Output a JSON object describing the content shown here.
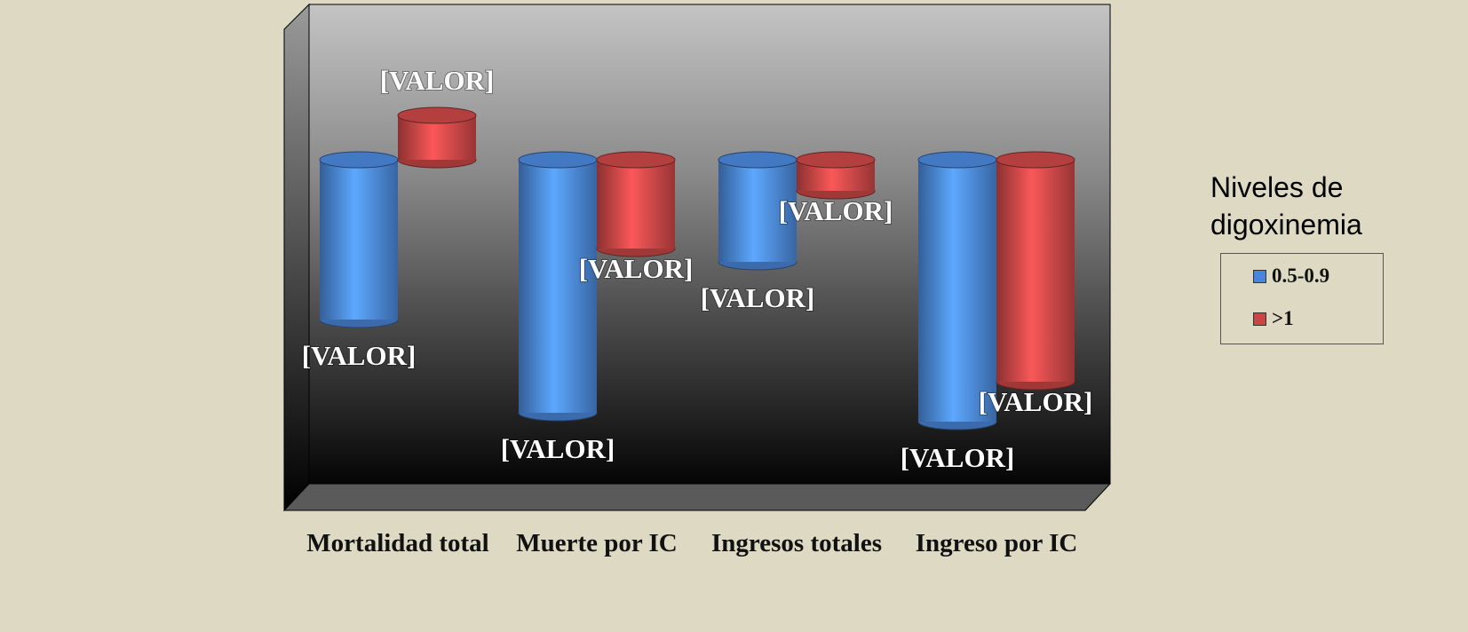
{
  "chart_data": {
    "type": "bar",
    "legend_title": "Niveles de digoxinemia",
    "legend": "right",
    "categories": [
      "Mortalidad total",
      "Muerte por IC",
      "Ingresos totales",
      "Ingreso por IC"
    ],
    "series": [
      {
        "name": "0.5-0.9",
        "color": "#4a86d8",
        "values": [
          -18,
          -28.5,
          -11.5,
          -29.5
        ],
        "value_labels": [
          "[VALOR]",
          "[VALOR]",
          "[VALOR]",
          "[VALOR]"
        ]
      },
      {
        "name": ">1",
        "color": "#c84646",
        "values": [
          5,
          -10,
          -3.5,
          -25
        ],
        "value_labels": [
          "[VALOR]",
          "[VALOR]",
          "[VALOR]",
          "[VALOR]"
        ]
      }
    ],
    "ylim": [
      -33,
      8
    ]
  }
}
